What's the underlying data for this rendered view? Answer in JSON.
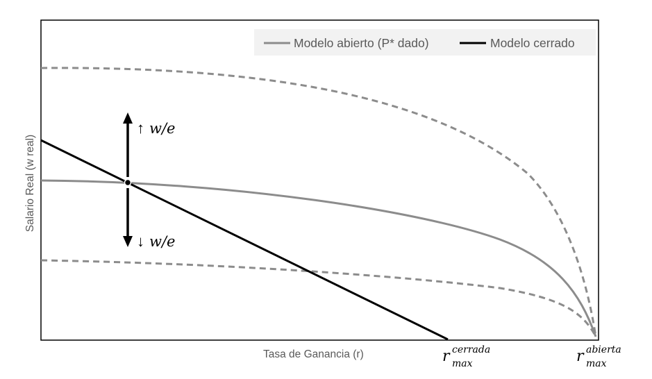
{
  "legend": {
    "open_label": "Modelo abierto (P* dado)",
    "closed_label": "Modelo cerrado"
  },
  "axes": {
    "y_label": "Salario Real (w real)",
    "x_label": "Tasa de Ganancia (r)"
  },
  "annotations": {
    "up_arrow": "↑",
    "up_text": "w/e",
    "down_arrow": "↓",
    "down_text": "w/e",
    "r_closed": {
      "base": "r",
      "sub": "max",
      "sup": "cerrada"
    },
    "r_open": {
      "base": "r",
      "sub": "max",
      "sup": "abierta"
    }
  },
  "colors": {
    "open_model": "#8c8c8c",
    "closed_model": "#000000",
    "legend_bg": "#f2f2f2",
    "axis_text": "#595959",
    "frame": "#000000"
  }
}
